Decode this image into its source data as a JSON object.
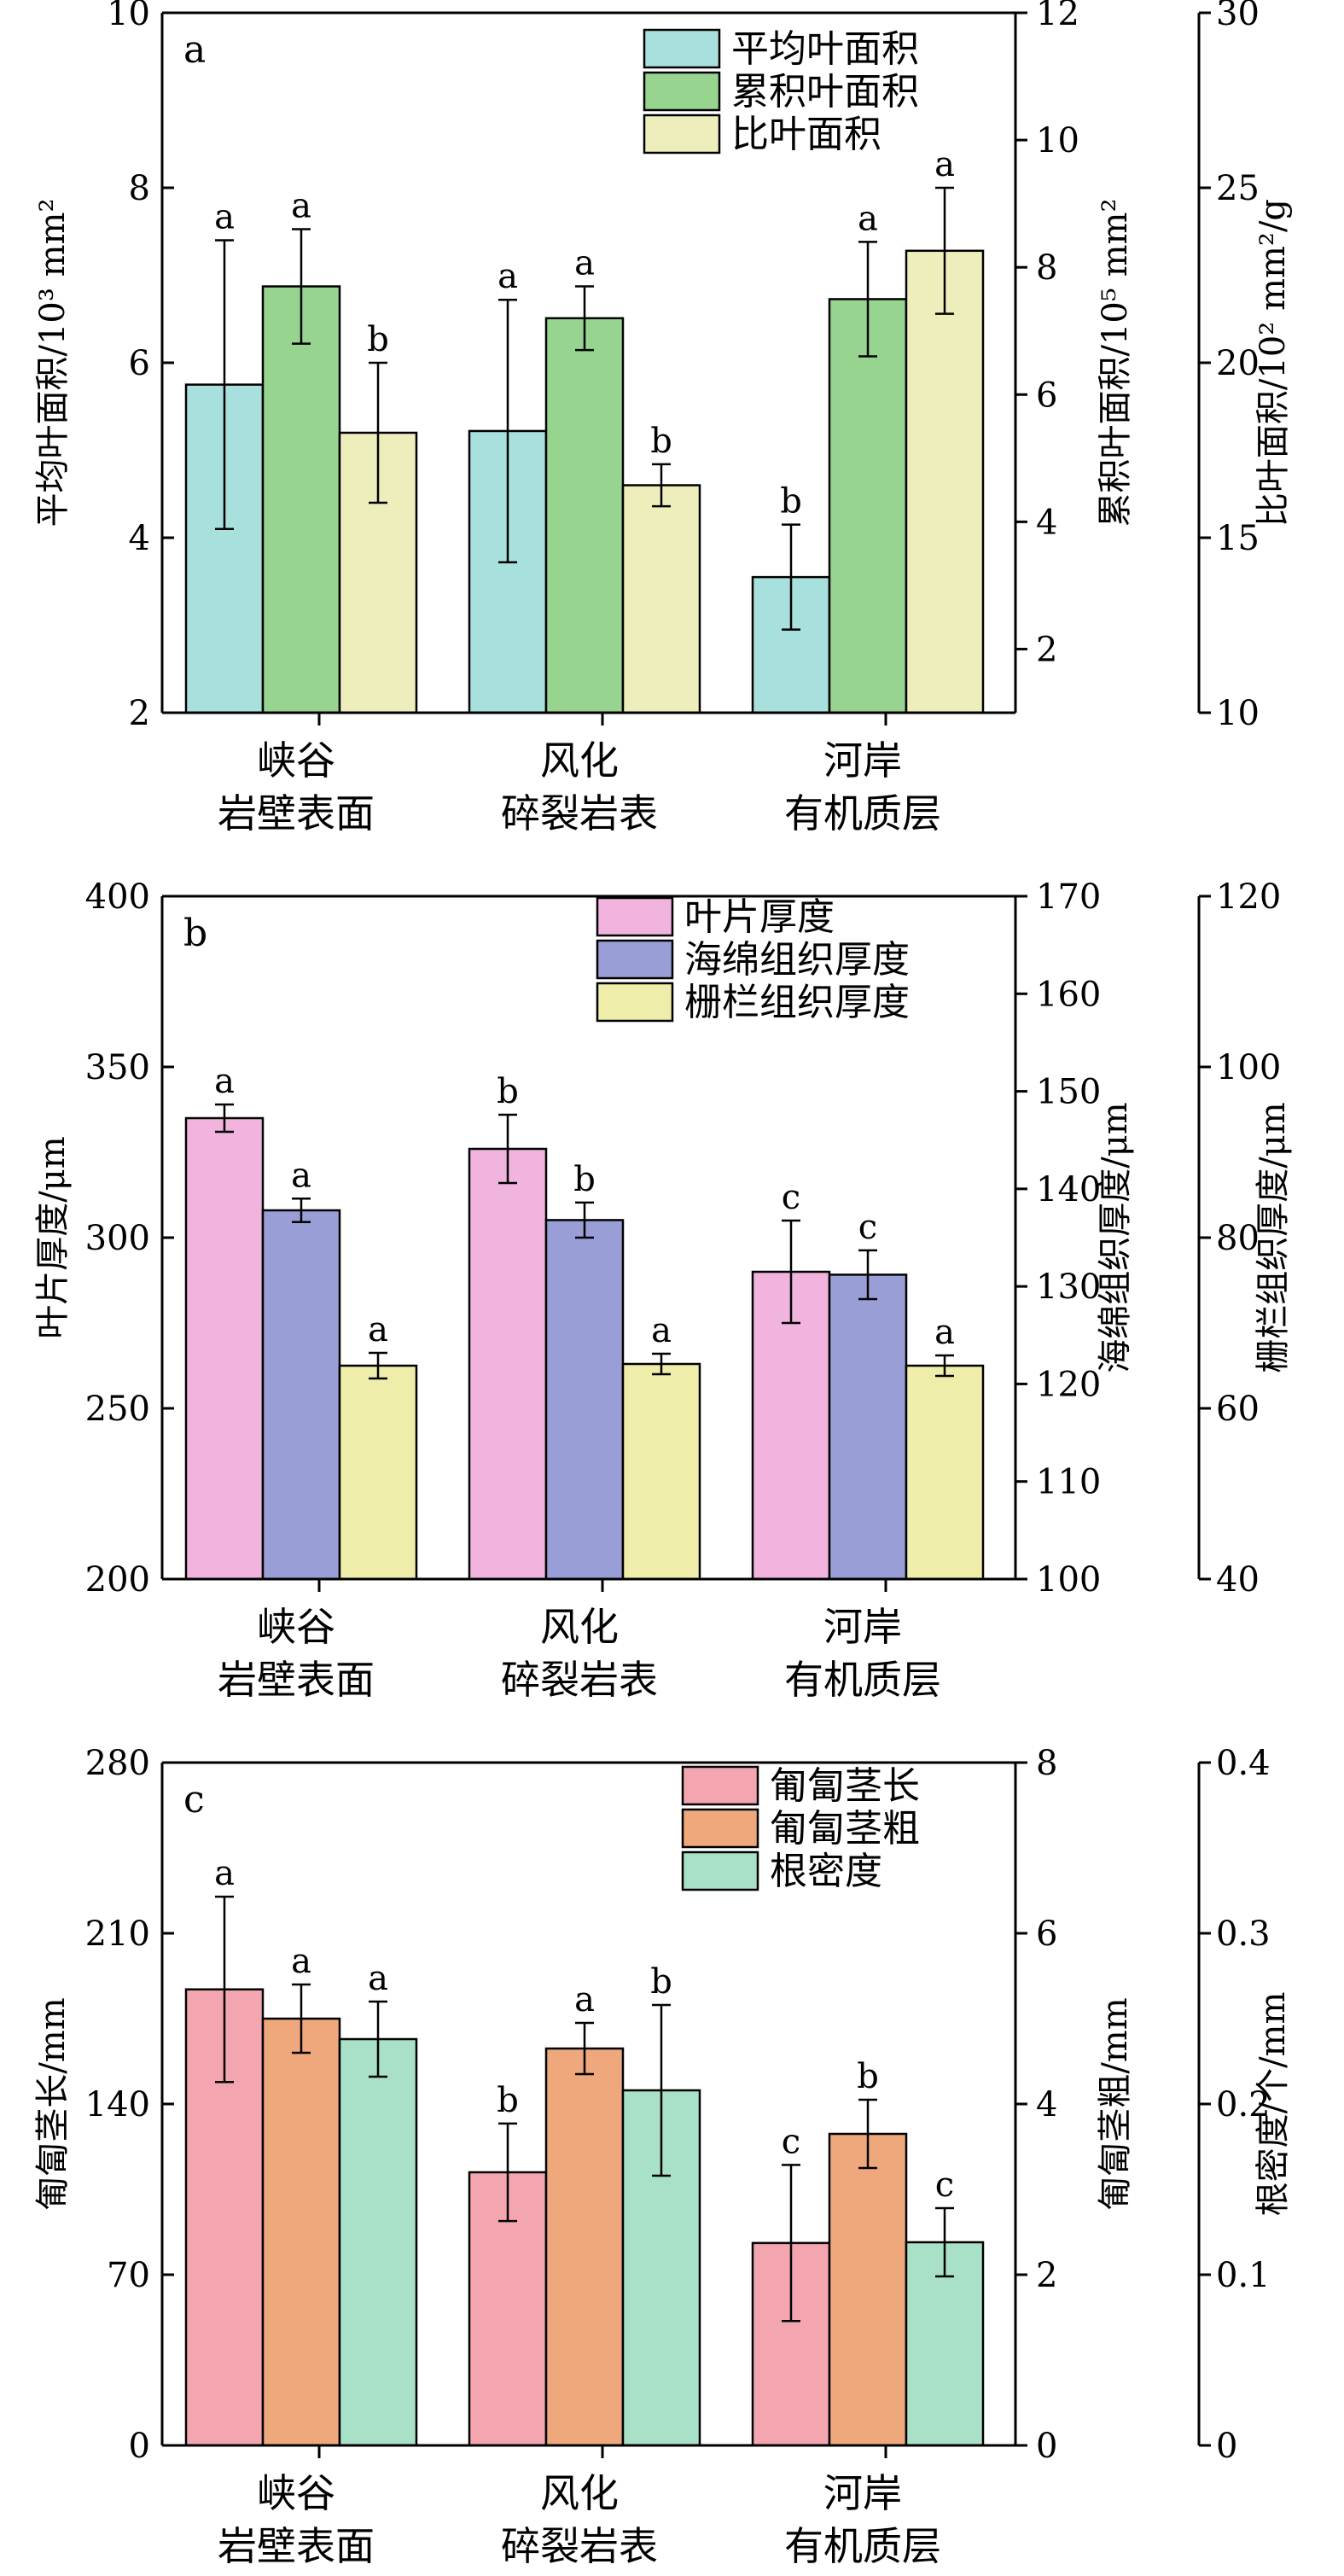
{
  "chart_data": [
    {
      "panel": "a",
      "type": "bar",
      "categories": [
        [
          "峡谷",
          "岩壁表面"
        ],
        [
          "风化",
          "碎裂岩表"
        ],
        [
          "河岸",
          "有机质层"
        ]
      ],
      "axes": [
        {
          "side": "left",
          "label": "平均叶面积/10³ mm²",
          "ylim": [
            2,
            10
          ],
          "ticks": [
            2,
            4,
            6,
            8,
            10
          ]
        },
        {
          "side": "right1",
          "label": "累积叶面积/10⁵ mm²",
          "ylim": [
            1,
            12
          ],
          "ticks": [
            2,
            4,
            6,
            8,
            10,
            12
          ]
        },
        {
          "side": "right2",
          "label": "比叶面积/10² mm²/g",
          "ylim": [
            10,
            30
          ],
          "ticks": [
            10,
            15,
            20,
            25,
            30
          ]
        }
      ],
      "series": [
        {
          "name": "平均叶面积",
          "axis": 0,
          "color": "#a8e0de",
          "values": [
            5.75,
            5.22,
            3.55
          ],
          "errors": [
            1.65,
            1.5,
            0.6
          ],
          "letters": [
            "a",
            "a",
            "b"
          ]
        },
        {
          "name": "累积叶面积",
          "axis": 1,
          "color": "#96d490",
          "values": [
            7.7,
            7.2,
            7.5
          ],
          "errors": [
            0.9,
            0.5,
            0.9
          ],
          "letters": [
            "a",
            "a",
            "a"
          ]
        },
        {
          "name": "比叶面积",
          "axis": 2,
          "color": "#eeeebc",
          "values": [
            18.0,
            16.5,
            23.2
          ],
          "errors": [
            2.0,
            0.6,
            1.8
          ],
          "letters": [
            "b",
            "b",
            "a"
          ]
        }
      ],
      "legend": "top-right"
    },
    {
      "panel": "b",
      "type": "bar",
      "categories": [
        [
          "峡谷",
          "岩壁表面"
        ],
        [
          "风化",
          "碎裂岩表"
        ],
        [
          "河岸",
          "有机质层"
        ]
      ],
      "axes": [
        {
          "side": "left",
          "label": "叶片厚度/μm",
          "ylim": [
            200,
            400
          ],
          "ticks": [
            200,
            250,
            300,
            350,
            400
          ]
        },
        {
          "side": "right1",
          "label": "海绵组织厚度/μm",
          "ylim": [
            100,
            170
          ],
          "ticks": [
            100,
            110,
            120,
            130,
            140,
            150,
            160,
            170
          ]
        },
        {
          "side": "right2",
          "label": "栅栏组织厚度/μm",
          "ylim": [
            40,
            120
          ],
          "ticks": [
            40,
            60,
            80,
            100,
            120
          ]
        }
      ],
      "series": [
        {
          "name": "叶片厚度",
          "axis": 0,
          "color": "#f0b4de",
          "values": [
            335,
            326,
            290
          ],
          "errors": [
            4,
            10,
            15
          ],
          "letters": [
            "a",
            "b",
            "c"
          ]
        },
        {
          "name": "海绵组织厚度",
          "axis": 1,
          "color": "#9a9ed6",
          "values": [
            137.8,
            136.8,
            131.2
          ],
          "errors": [
            1.2,
            1.8,
            2.5
          ],
          "letters": [
            "a",
            "b",
            "c"
          ]
        },
        {
          "name": "栅栏组织厚度",
          "axis": 2,
          "color": "#eeeeaa",
          "values": [
            65,
            65.2,
            65
          ],
          "errors": [
            1.5,
            1.2,
            1.2
          ],
          "letters": [
            "a",
            "a",
            "a"
          ]
        }
      ],
      "legend": "top-right"
    },
    {
      "panel": "c",
      "type": "bar",
      "categories": [
        [
          "峡谷",
          "岩壁表面"
        ],
        [
          "风化",
          "碎裂岩表"
        ],
        [
          "河岸",
          "有机质层"
        ]
      ],
      "axes": [
        {
          "side": "left",
          "label": "匍匐茎长/mm",
          "ylim": [
            0,
            280
          ],
          "ticks": [
            0,
            70,
            140,
            210,
            280
          ]
        },
        {
          "side": "right1",
          "label": "匍匐茎粗/mm",
          "ylim": [
            0,
            8
          ],
          "ticks": [
            0,
            2,
            4,
            6,
            8
          ]
        },
        {
          "side": "right2",
          "label": "根密度/个/mm",
          "ylim": [
            0,
            0.4
          ],
          "ticks": [
            0,
            0.1,
            0.2,
            0.3,
            0.4
          ]
        }
      ],
      "series": [
        {
          "name": "匍匐茎长",
          "axis": 0,
          "color": "#f4a6b0",
          "values": [
            187,
            112,
            83
          ],
          "errors": [
            38,
            20,
            32
          ],
          "letters": [
            "a",
            "b",
            "c"
          ]
        },
        {
          "name": "匍匐茎粗",
          "axis": 1,
          "color": "#eea87c",
          "values": [
            5.0,
            4.65,
            3.65
          ],
          "errors": [
            0.4,
            0.3,
            0.4
          ],
          "letters": [
            "a",
            "a",
            "b"
          ]
        },
        {
          "name": "根密度",
          "axis": 2,
          "color": "#a8e0c8",
          "values": [
            0.238,
            0.208,
            0.119
          ],
          "errors": [
            0.022,
            0.05,
            0.02
          ],
          "letters": [
            "a",
            "b",
            "c"
          ]
        }
      ],
      "legend": "top-right"
    }
  ]
}
